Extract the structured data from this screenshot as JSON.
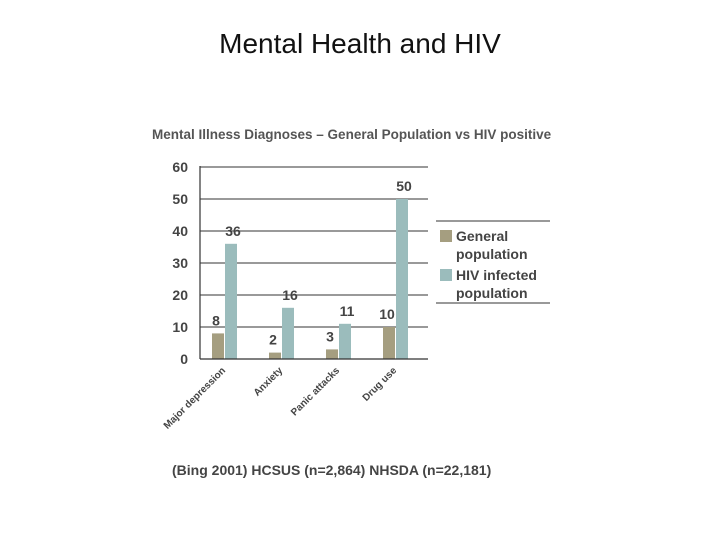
{
  "slide": {
    "title": "Mental Health and HIV"
  },
  "chart_data": {
    "type": "bar",
    "title": "Mental Illness Diagnoses – General Population vs HIV positive",
    "categories": [
      "Major depression",
      "Anxiety",
      "Panic attacks",
      "Drug use"
    ],
    "series": [
      {
        "name": "General population",
        "values": [
          8,
          2,
          3,
          10
        ],
        "color": "#a59e80"
      },
      {
        "name": "HIV infected population",
        "values": [
          36,
          16,
          11,
          50
        ],
        "color": "#9bbcbc"
      }
    ],
    "ylim": [
      0,
      60
    ],
    "yticks": [
      0,
      10,
      20,
      30,
      40,
      50,
      60
    ],
    "grid": "horizontal",
    "legend": "right",
    "footnote": "(Bing 2001)    HCSUS (n=2,864)    NHSDA (n=22,181)"
  }
}
